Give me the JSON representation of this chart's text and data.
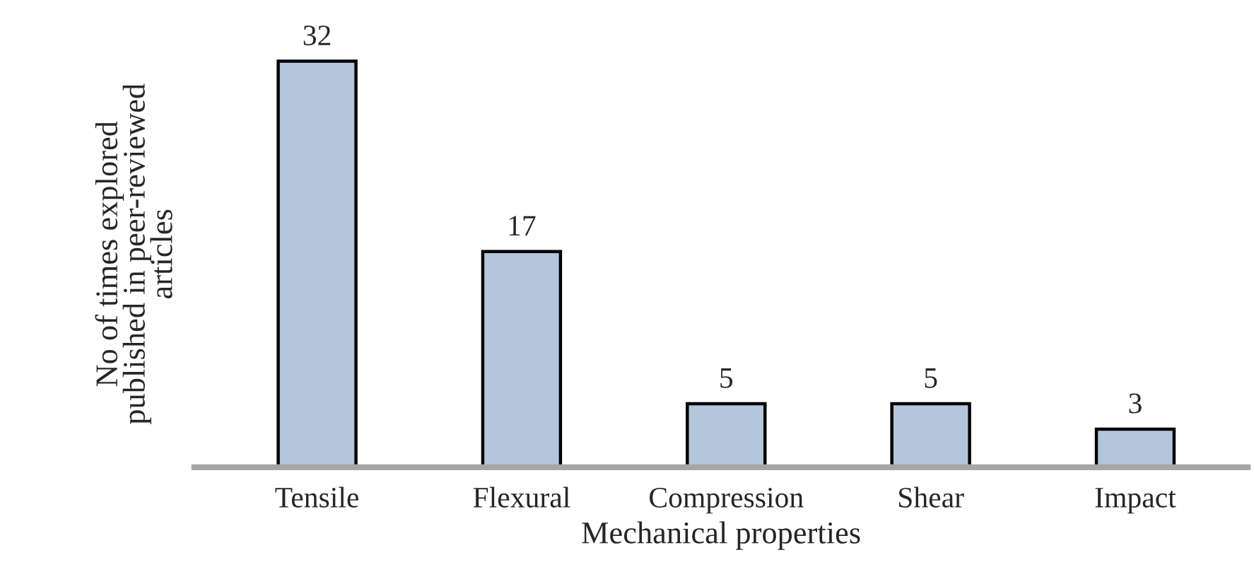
{
  "chart_data": {
    "type": "bar",
    "categories": [
      "Tensile",
      "Flexural",
      "Compression",
      "Shear",
      "Impact"
    ],
    "values": [
      32,
      17,
      5,
      5,
      3
    ],
    "color": "#b4c6dc",
    "xlabel": "Mechanical properties",
    "ylabel": "No of times explored\npublished in peer-reviewed\narticles",
    "data_labels": true,
    "tick_labels": "x",
    "grid": false,
    "legend": false
  }
}
